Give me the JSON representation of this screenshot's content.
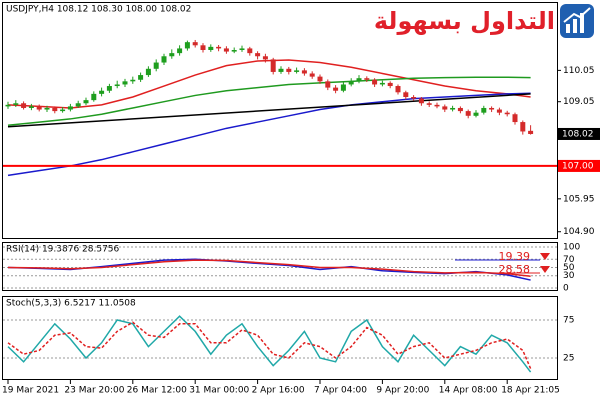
{
  "chart_data": {
    "type": "candlestick",
    "title": "USDJPY,H4  108.12 108.30 108.00 108.02",
    "logo": "التداول بسهولة",
    "categories": [
      "19 Mar 2021",
      null,
      null,
      null,
      null,
      null,
      null,
      null,
      "23 Mar 20:00",
      null,
      null,
      null,
      null,
      null,
      null,
      null,
      "26 Mar 12:00",
      null,
      null,
      null,
      null,
      null,
      null,
      null,
      "31 Mar 00:00",
      null,
      null,
      null,
      null,
      null,
      null,
      null,
      "2 Apr 16:00",
      null,
      null,
      null,
      null,
      null,
      null,
      null,
      "7 Apr 04:00",
      null,
      null,
      null,
      null,
      null,
      null,
      null,
      "9 Apr 20:00",
      null,
      null,
      null,
      null,
      null,
      null,
      null,
      "14 Apr 08:00",
      null,
      null,
      null,
      null,
      null,
      null,
      null,
      "18 Apr 21:05",
      null,
      null,
      null
    ],
    "candles": [
      [
        108.9,
        109.05,
        108.82,
        108.95
      ],
      [
        108.95,
        109.1,
        108.88,
        109.0
      ],
      [
        109.0,
        109.06,
        108.8,
        108.85
      ],
      [
        108.85,
        108.98,
        108.78,
        108.9
      ],
      [
        108.9,
        108.96,
        108.74,
        108.8
      ],
      [
        108.8,
        108.92,
        108.72,
        108.85
      ],
      [
        108.85,
        108.9,
        108.68,
        108.75
      ],
      [
        108.75,
        108.88,
        108.7,
        108.8
      ],
      [
        108.8,
        108.98,
        108.74,
        108.9
      ],
      [
        108.9,
        109.08,
        108.85,
        109.0
      ],
      [
        109.0,
        109.18,
        108.94,
        109.1
      ],
      [
        109.1,
        109.38,
        109.05,
        109.3
      ],
      [
        109.3,
        109.5,
        109.22,
        109.4
      ],
      [
        109.4,
        109.62,
        109.33,
        109.55
      ],
      [
        109.55,
        109.72,
        109.48,
        109.6
      ],
      [
        109.6,
        109.78,
        109.52,
        109.7
      ],
      [
        109.7,
        109.85,
        109.62,
        109.75
      ],
      [
        109.75,
        109.98,
        109.68,
        109.9
      ],
      [
        109.9,
        110.18,
        109.84,
        110.1
      ],
      [
        110.1,
        110.4,
        110.02,
        110.3
      ],
      [
        110.3,
        110.58,
        110.22,
        110.5
      ],
      [
        110.5,
        110.72,
        110.42,
        110.6
      ],
      [
        110.6,
        110.85,
        110.52,
        110.75
      ],
      [
        110.75,
        111.0,
        110.68,
        110.95
      ],
      [
        110.95,
        111.02,
        110.78,
        110.85
      ],
      [
        110.85,
        110.92,
        110.62,
        110.7
      ],
      [
        110.7,
        110.88,
        110.64,
        110.8
      ],
      [
        110.8,
        110.86,
        110.66,
        110.75
      ],
      [
        110.75,
        110.82,
        110.58,
        110.65
      ],
      [
        110.65,
        110.78,
        110.6,
        110.7
      ],
      [
        110.7,
        110.84,
        110.64,
        110.75
      ],
      [
        110.75,
        110.8,
        110.52,
        110.6
      ],
      [
        110.6,
        110.66,
        110.4,
        110.5
      ],
      [
        110.5,
        110.58,
        110.3,
        110.4
      ],
      [
        110.4,
        110.45,
        109.92,
        110.0
      ],
      [
        110.0,
        110.18,
        109.94,
        110.1
      ],
      [
        110.1,
        110.16,
        109.92,
        110.0
      ],
      [
        110.0,
        110.14,
        109.95,
        110.05
      ],
      [
        110.05,
        110.12,
        109.88,
        109.95
      ],
      [
        109.95,
        110.02,
        109.78,
        109.85
      ],
      [
        109.85,
        109.92,
        109.62,
        109.7
      ],
      [
        109.7,
        109.76,
        109.42,
        109.5
      ],
      [
        109.5,
        109.58,
        109.32,
        109.4
      ],
      [
        109.4,
        109.68,
        109.35,
        109.6
      ],
      [
        109.6,
        109.8,
        109.54,
        109.7
      ],
      [
        109.7,
        109.9,
        109.64,
        109.8
      ],
      [
        109.8,
        109.86,
        109.68,
        109.75
      ],
      [
        109.75,
        109.8,
        109.52,
        109.6
      ],
      [
        109.6,
        109.72,
        109.54,
        109.65
      ],
      [
        109.65,
        109.7,
        109.48,
        109.55
      ],
      [
        109.55,
        109.6,
        109.28,
        109.35
      ],
      [
        109.35,
        109.4,
        109.12,
        109.2
      ],
      [
        109.2,
        109.26,
        109.08,
        109.15
      ],
      [
        109.15,
        109.2,
        108.92,
        109.0
      ],
      [
        109.0,
        109.06,
        108.88,
        108.95
      ],
      [
        108.95,
        109.02,
        108.84,
        108.9
      ],
      [
        108.9,
        108.96,
        108.72,
        108.8
      ],
      [
        108.8,
        108.92,
        108.74,
        108.85
      ],
      [
        108.85,
        108.9,
        108.68,
        108.75
      ],
      [
        108.75,
        108.8,
        108.52,
        108.6
      ],
      [
        108.6,
        108.78,
        108.55,
        108.7
      ],
      [
        108.7,
        108.92,
        108.64,
        108.85
      ],
      [
        108.85,
        108.9,
        108.72,
        108.8
      ],
      [
        108.8,
        108.86,
        108.62,
        108.7
      ],
      [
        108.7,
        108.76,
        108.58,
        108.65
      ],
      [
        108.65,
        108.7,
        108.32,
        108.4
      ],
      [
        108.4,
        108.45,
        108.0,
        108.1
      ],
      [
        108.12,
        108.3,
        108.0,
        108.02
      ]
    ],
    "up_color": "#1e9e1e",
    "down_color": "#d42a2a",
    "ylim": [
      104.7,
      112.2
    ],
    "yticks": [
      110.05,
      109.05,
      105.95,
      {
        "value": 104.9,
        "label": "104.90"
      }
    ],
    "hline": {
      "value": 107,
      "label": "107.00",
      "color": "#ff0000"
    },
    "overlays": [
      {
        "color": "#e02020",
        "x": [
          0,
          4,
          8,
          12,
          16,
          20,
          24,
          28,
          32,
          36,
          40,
          44,
          48,
          52,
          56,
          60,
          64,
          67
        ],
        "values": [
          108.95,
          108.9,
          108.85,
          108.95,
          109.2,
          109.55,
          109.9,
          110.2,
          110.35,
          110.38,
          110.3,
          110.15,
          109.95,
          109.75,
          109.55,
          109.4,
          109.3,
          109.2
        ]
      },
      {
        "color": "#1f9a1f",
        "x": [
          0,
          4,
          8,
          12,
          16,
          20,
          24,
          28,
          32,
          36,
          40,
          44,
          48,
          52,
          56,
          60,
          64,
          67
        ],
        "values": [
          108.3,
          108.4,
          108.5,
          108.65,
          108.85,
          109.05,
          109.25,
          109.4,
          109.5,
          109.6,
          109.65,
          109.7,
          109.75,
          109.8,
          109.82,
          109.83,
          109.83,
          109.82
        ]
      },
      {
        "color": "#1a1acc",
        "x": [
          0,
          4,
          8,
          12,
          16,
          20,
          24,
          28,
          32,
          36,
          40,
          44,
          48,
          52,
          56,
          60,
          64,
          67
        ],
        "values": [
          106.7,
          106.85,
          107.0,
          107.2,
          107.45,
          107.7,
          107.95,
          108.2,
          108.4,
          108.6,
          108.8,
          108.95,
          109.05,
          109.15,
          109.2,
          109.25,
          109.3,
          109.32
        ]
      },
      {
        "color": "#000000",
        "x": [
          0,
          67
        ],
        "values": [
          108.25,
          109.3
        ]
      }
    ],
    "rsi": {
      "title": "RSI(14) 19.3876 28.5756",
      "ylim": [
        0,
        100
      ],
      "yticks": [
        100,
        70,
        50,
        30,
        0
      ],
      "grid": true,
      "series": [
        {
          "color": "#1a1acc",
          "last_label": "19.39",
          "x": [
            0,
            4,
            8,
            12,
            16,
            20,
            24,
            28,
            32,
            36,
            40,
            44,
            48,
            52,
            56,
            60,
            64,
            67
          ],
          "values": [
            50,
            48,
            45,
            52,
            60,
            68,
            70,
            66,
            60,
            55,
            45,
            52,
            42,
            38,
            35,
            40,
            32,
            19.3876
          ]
        },
        {
          "color": "#e02020",
          "last_label": "28.58",
          "x": [
            0,
            4,
            8,
            12,
            16,
            20,
            24,
            28,
            32,
            36,
            40,
            44,
            48,
            52,
            56,
            60,
            64,
            67
          ],
          "values": [
            50,
            49,
            47,
            50,
            57,
            64,
            68,
            67,
            62,
            57,
            50,
            50,
            46,
            40,
            37,
            38,
            35,
            28.5756
          ]
        }
      ]
    },
    "stoch": {
      "title": "Stoch(5,3,3) 6.5217 11.0508",
      "ylim": [
        0,
        100
      ],
      "yticks": [
        75,
        25
      ],
      "grid": true,
      "series": [
        {
          "color": "#20a8a8",
          "dash": false,
          "x": [
            0,
            2,
            4,
            6,
            8,
            10,
            12,
            14,
            16,
            18,
            20,
            22,
            24,
            26,
            28,
            30,
            32,
            34,
            36,
            38,
            40,
            42,
            44,
            46,
            48,
            50,
            52,
            54,
            56,
            58,
            60,
            62,
            64,
            66,
            67
          ],
          "values": [
            40,
            20,
            45,
            70,
            50,
            25,
            45,
            75,
            70,
            40,
            60,
            80,
            60,
            30,
            55,
            70,
            40,
            15,
            35,
            60,
            25,
            20,
            60,
            75,
            40,
            20,
            55,
            35,
            15,
            40,
            30,
            55,
            45,
            20,
            6.5217
          ]
        },
        {
          "color": "#e02020",
          "dash": true,
          "x": [
            0,
            2,
            4,
            6,
            8,
            10,
            12,
            14,
            16,
            18,
            20,
            22,
            24,
            26,
            28,
            30,
            32,
            34,
            36,
            38,
            40,
            42,
            44,
            46,
            48,
            50,
            52,
            54,
            56,
            58,
            60,
            62,
            64,
            66,
            67
          ],
          "values": [
            45,
            30,
            35,
            55,
            58,
            40,
            38,
            60,
            72,
            55,
            52,
            70,
            70,
            45,
            45,
            62,
            55,
            30,
            25,
            45,
            40,
            25,
            40,
            65,
            55,
            30,
            40,
            45,
            25,
            30,
            35,
            45,
            50,
            35,
            11.0508
          ]
        }
      ]
    }
  }
}
